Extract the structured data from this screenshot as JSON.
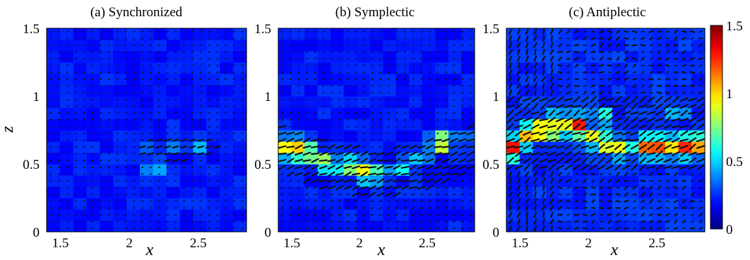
{
  "chart_data": [
    {
      "type": "heatmap",
      "title": "(a) Synchronized",
      "xlabel": "x",
      "ylabel": "z",
      "xlim": [
        1.4,
        2.85
      ],
      "ylim": [
        0,
        1.5
      ],
      "xticks": [
        "1.5",
        "2",
        "2.5"
      ],
      "yticks": [
        "0",
        "0.5",
        "1",
        "1.5"
      ],
      "grid_cols": 15,
      "grid_rows": 18,
      "background_level": 0.22,
      "hotspots": [
        {
          "x": 2.18,
          "z": 0.48,
          "value": 0.55
        },
        {
          "x": 2.35,
          "z": 0.65,
          "value": 0.45
        },
        {
          "x": 2.52,
          "z": 0.64,
          "value": 0.48
        },
        {
          "x": 2.1,
          "z": 0.62,
          "value": 0.35
        }
      ],
      "orientation_note": "black line segments (director field) drawn on every cell"
    },
    {
      "type": "heatmap",
      "title": "(b) Symplectic",
      "xlabel": "x",
      "xlim": [
        1.4,
        2.85
      ],
      "ylim": [
        0,
        1.5
      ],
      "xticks": [
        "1.5",
        "2",
        "2.5"
      ],
      "yticks": [
        "0",
        "0.5",
        "1",
        "1.5"
      ],
      "grid_cols": 15,
      "grid_rows": 18,
      "background_level": 0.22,
      "hotspots": [
        {
          "x": 1.5,
          "z": 0.62,
          "value": 1.25
        },
        {
          "x": 1.6,
          "z": 0.58,
          "value": 1.05
        },
        {
          "x": 1.75,
          "z": 0.52,
          "value": 0.85
        },
        {
          "x": 1.9,
          "z": 0.48,
          "value": 0.9
        },
        {
          "x": 2.02,
          "z": 0.45,
          "value": 0.95
        },
        {
          "x": 2.15,
          "z": 0.44,
          "value": 0.75
        },
        {
          "x": 2.3,
          "z": 0.47,
          "value": 0.6
        },
        {
          "x": 2.45,
          "z": 0.55,
          "value": 0.55
        },
        {
          "x": 2.6,
          "z": 0.66,
          "value": 1.0
        },
        {
          "x": 2.75,
          "z": 0.68,
          "value": 0.5
        }
      ]
    },
    {
      "type": "heatmap",
      "title": "(c) Antiplectic",
      "xlabel": "x",
      "xlim": [
        1.4,
        2.85
      ],
      "ylim": [
        0,
        1.5
      ],
      "xticks": [
        "1.5",
        "2",
        "2.5"
      ],
      "yticks": [
        "0",
        "0.5",
        "1",
        "1.5"
      ],
      "grid_cols": 15,
      "grid_rows": 18,
      "background_level": 0.25,
      "hotspots": [
        {
          "x": 1.45,
          "z": 0.62,
          "value": 1.3
        },
        {
          "x": 1.55,
          "z": 0.72,
          "value": 1.05
        },
        {
          "x": 1.68,
          "z": 0.75,
          "value": 1.35
        },
        {
          "x": 1.78,
          "z": 0.8,
          "value": 1.1
        },
        {
          "x": 1.9,
          "z": 0.78,
          "value": 1.45
        },
        {
          "x": 2.0,
          "z": 0.7,
          "value": 1.0
        },
        {
          "x": 2.12,
          "z": 0.65,
          "value": 0.95
        },
        {
          "x": 2.25,
          "z": 0.62,
          "value": 1.0
        },
        {
          "x": 2.4,
          "z": 0.63,
          "value": 1.2
        },
        {
          "x": 2.55,
          "z": 0.63,
          "value": 1.4
        },
        {
          "x": 2.68,
          "z": 0.63,
          "value": 1.35
        },
        {
          "x": 2.8,
          "z": 0.64,
          "value": 1.1
        },
        {
          "x": 2.1,
          "z": 0.85,
          "value": 0.7
        },
        {
          "x": 2.65,
          "z": 0.88,
          "value": 0.55
        }
      ]
    }
  ],
  "colorbar": {
    "min": 0,
    "max": 1.5,
    "ticks": [
      "0",
      "0.5",
      "1",
      "1.5"
    ],
    "colormap": "jet"
  }
}
